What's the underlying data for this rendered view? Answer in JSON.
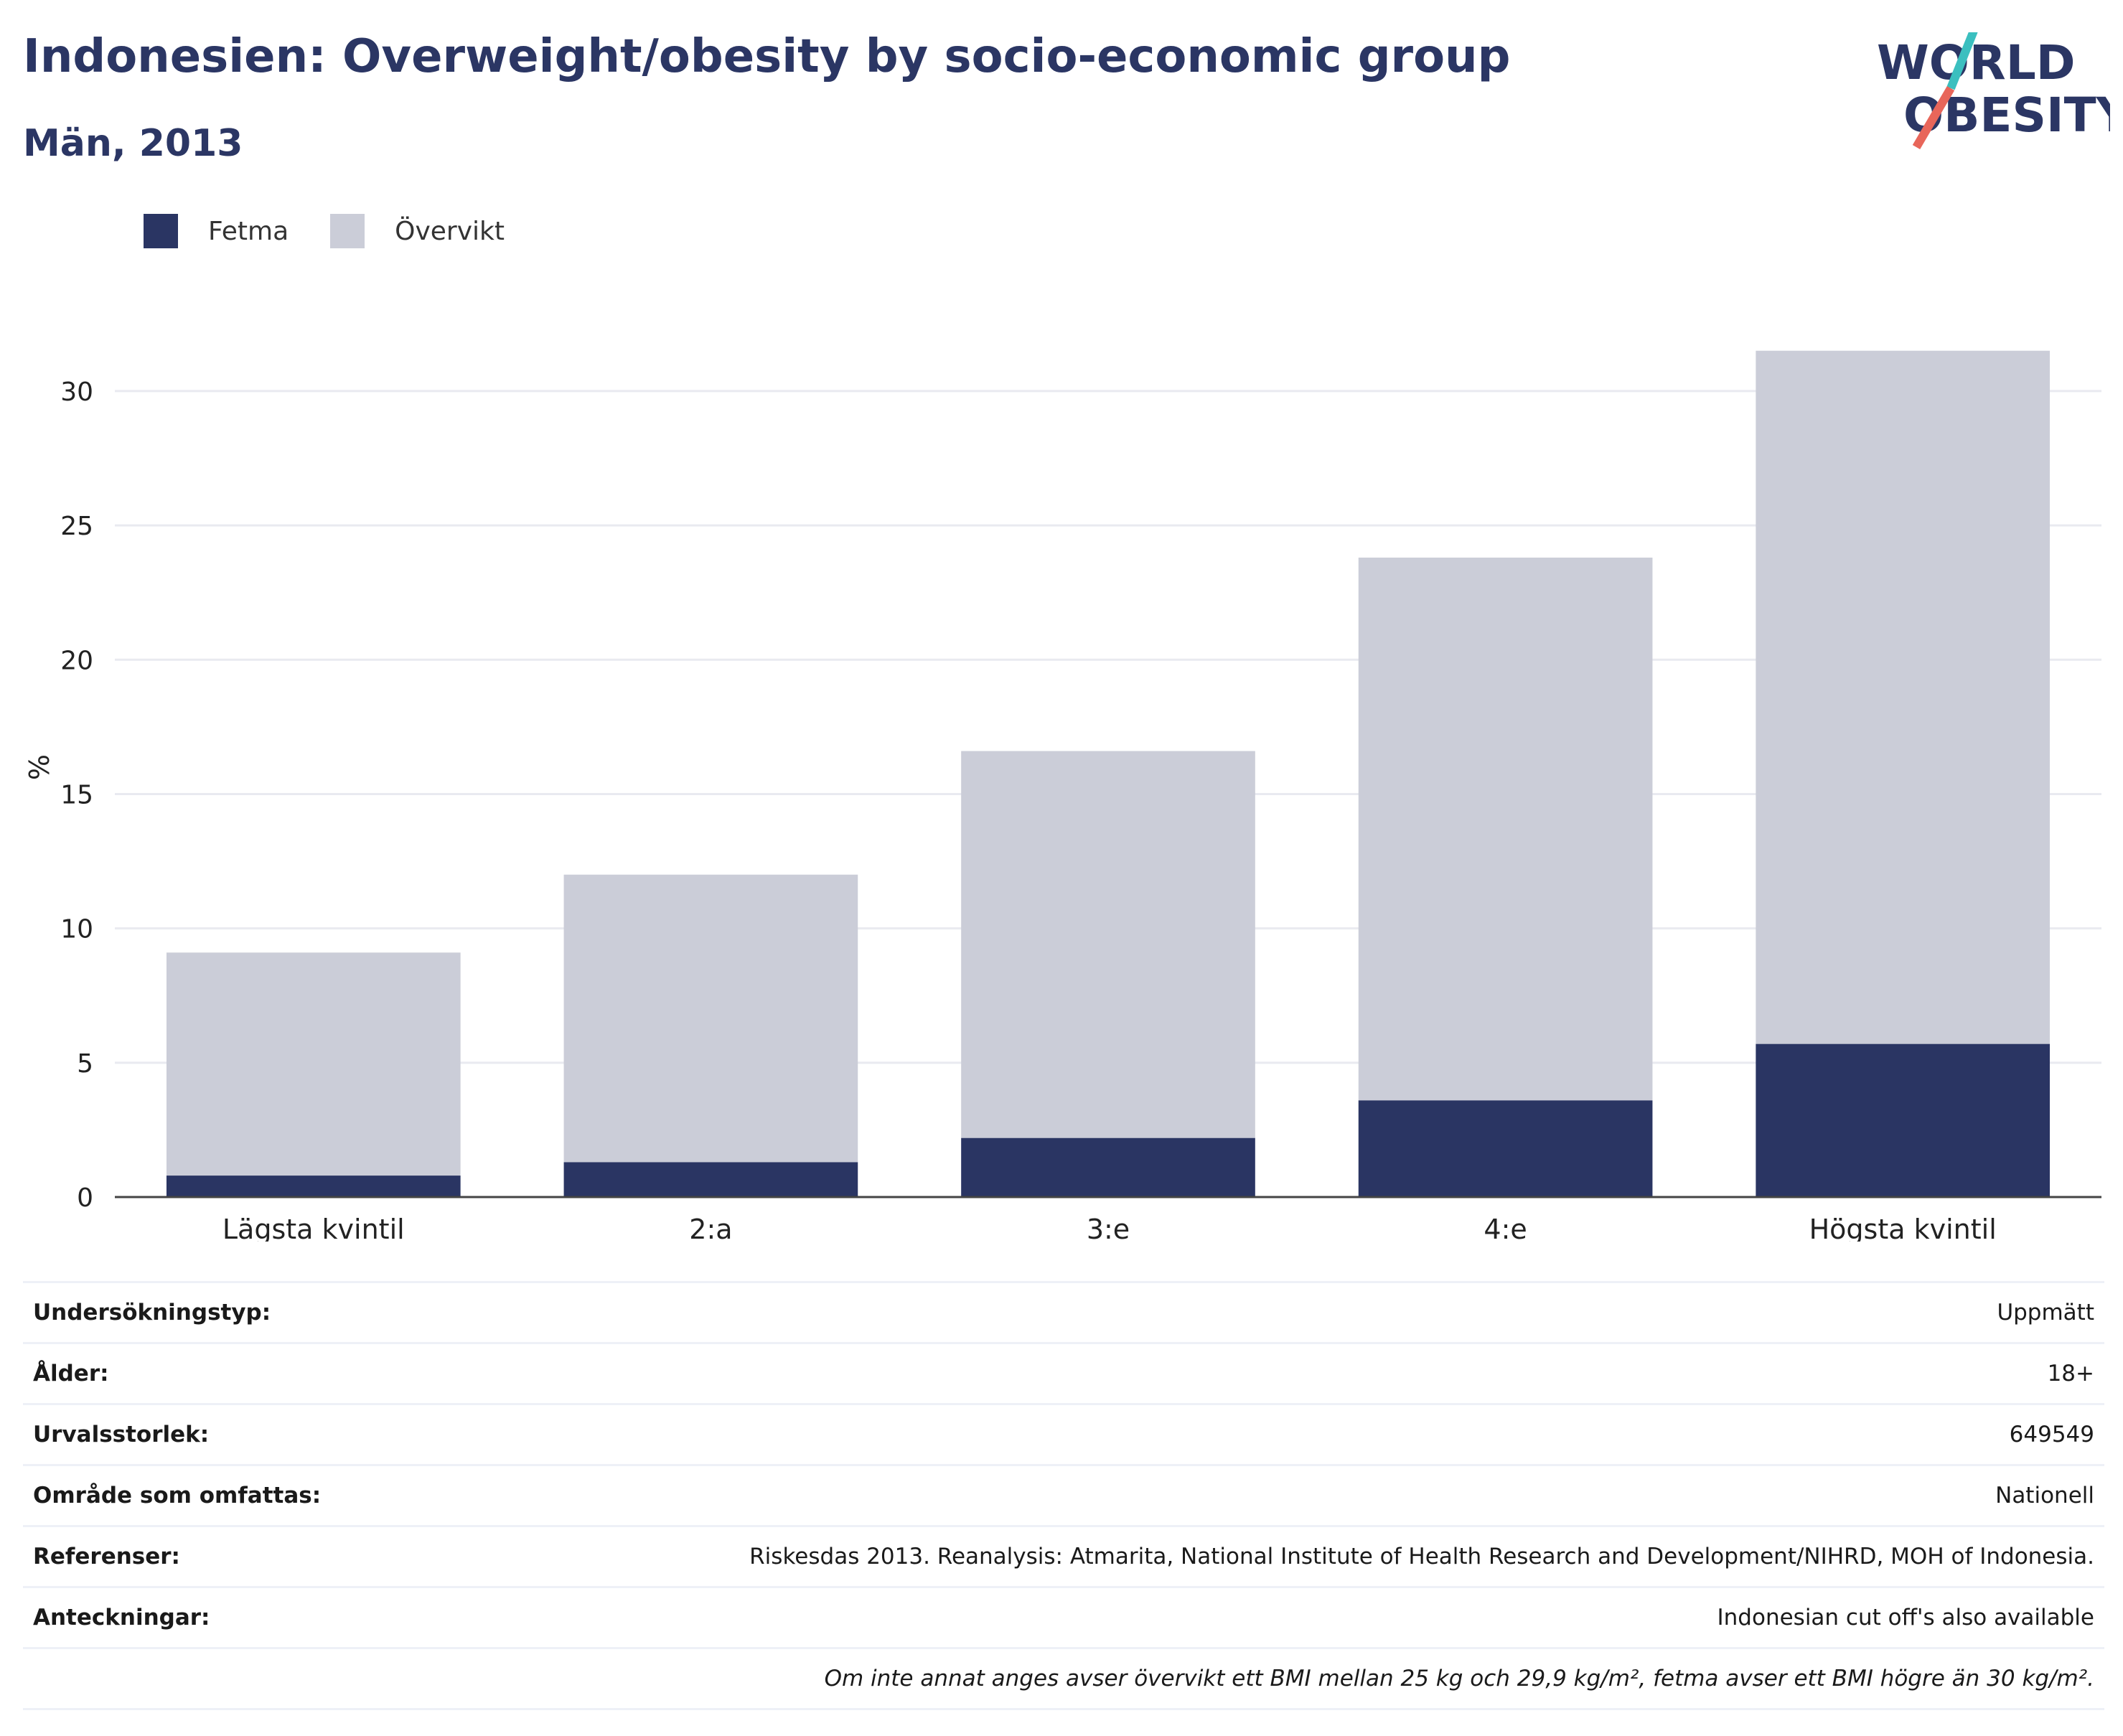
{
  "header": {
    "title": "Indonesien: Overweight/obesity by socio-economic group",
    "subtitle": "Män, 2013"
  },
  "logo": {
    "line1": "WORLD",
    "line2": "OBESITY",
    "accent_colors": [
      "#3bbfbf",
      "#e8665a"
    ]
  },
  "colors": {
    "fetma": "#2a3563",
    "overvikt": "#cbcdd8",
    "axis": "#444444",
    "grid": "#e9eaf0"
  },
  "chart_data": {
    "type": "bar",
    "stacked": true,
    "categories": [
      "Lägsta kvintil",
      "2:a",
      "3:e",
      "4:e",
      "Högsta kvintil"
    ],
    "series": [
      {
        "name": "Fetma",
        "values": [
          0.8,
          1.3,
          2.2,
          3.6,
          5.7
        ]
      },
      {
        "name": "Övervikt",
        "values": [
          8.3,
          10.7,
          14.4,
          20.2,
          25.8
        ]
      }
    ],
    "totals": [
      9.1,
      12.0,
      16.6,
      23.8,
      31.5
    ],
    "ylabel": "%",
    "xlabel": "",
    "ylim": [
      0,
      32
    ],
    "yticks": [
      0,
      5,
      10,
      15,
      20,
      25,
      30
    ],
    "grid": true,
    "legend_position": "top-left"
  },
  "meta": [
    {
      "label": "Undersökningstyp:",
      "value": "Uppmätt"
    },
    {
      "label": "Ålder:",
      "value": "18+"
    },
    {
      "label": "Urvalsstorlek:",
      "value": "649549"
    },
    {
      "label": "Område som omfattas:",
      "value": "Nationell"
    },
    {
      "label": "Referenser:",
      "value": "Riskesdas 2013. Reanalysis: Atmarita, National Institute of Health Research and Development/NIHRD, MOH of Indonesia."
    },
    {
      "label": "Anteckningar:",
      "value": "Indonesian cut off's also available"
    }
  ],
  "footnote": "Om inte annat anges avser övervikt ett BMI mellan 25 kg och 29,9 kg/m², fetma avser ett BMI högre än 30 kg/m²."
}
